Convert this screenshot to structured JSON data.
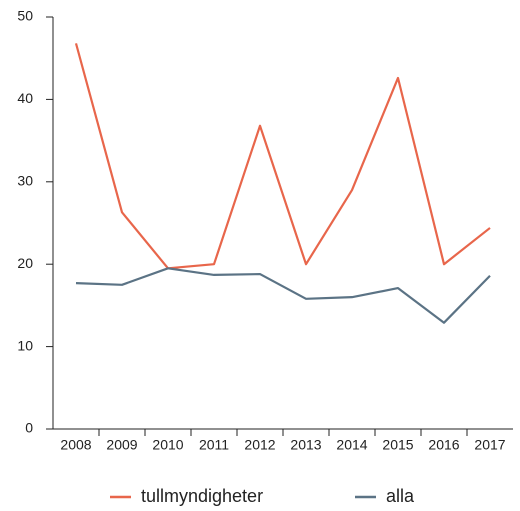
{
  "chart_data": {
    "type": "line",
    "categories": [
      "2008",
      "2009",
      "2010",
      "2011",
      "2012",
      "2013",
      "2014",
      "2015",
      "2016",
      "2017"
    ],
    "series": [
      {
        "name": "tullmyndigheter",
        "color": "#e8664b",
        "values": [
          46.8,
          26.3,
          19.5,
          20.0,
          36.8,
          20.0,
          29.0,
          42.6,
          20.0,
          24.4
        ]
      },
      {
        "name": "alla",
        "color": "#5b7385",
        "values": [
          17.7,
          17.5,
          19.5,
          18.7,
          18.8,
          15.8,
          16.0,
          17.1,
          12.9,
          18.6
        ]
      }
    ],
    "ylim": [
      0,
      50
    ],
    "yticks": [
      0,
      10,
      20,
      30,
      40,
      50
    ],
    "grid": false,
    "legend": "bottom"
  }
}
